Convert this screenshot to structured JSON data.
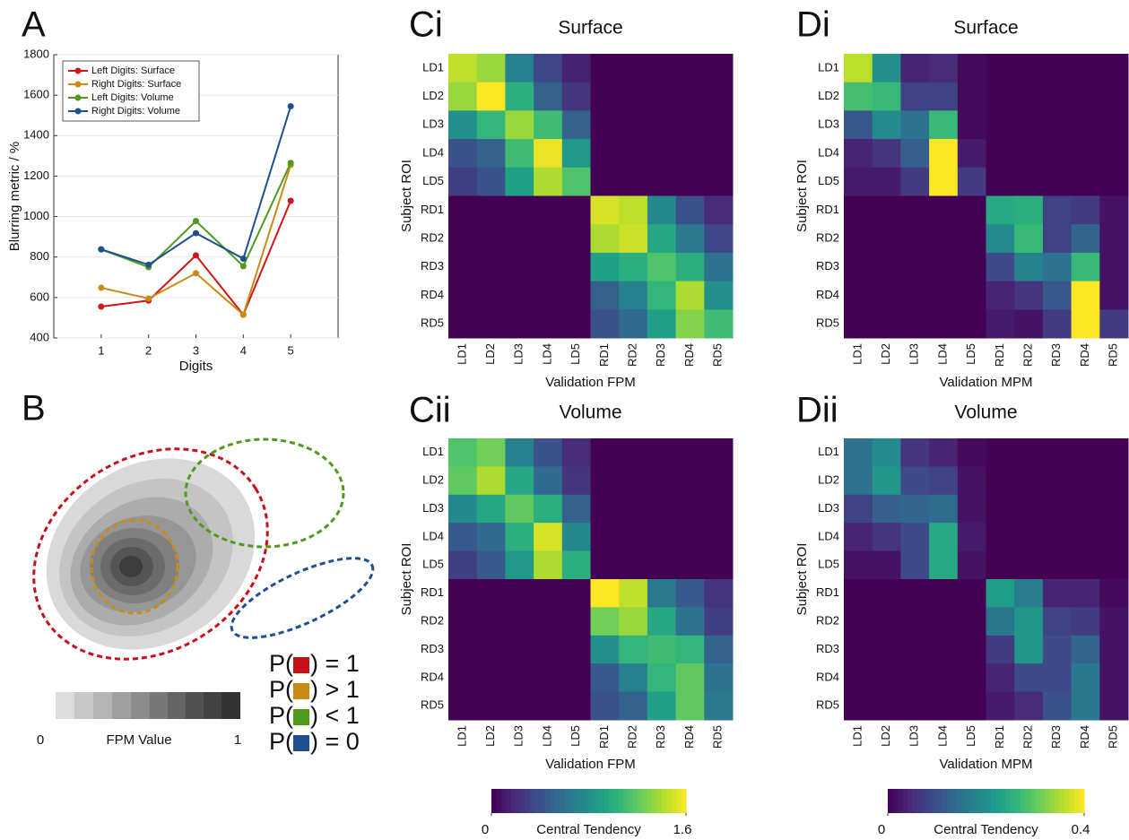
{
  "chart_data": [
    {
      "type": "line",
      "panel": "A",
      "xlabel": "Digits",
      "ylabel": "Blurring metric / %",
      "x": [
        1,
        2,
        3,
        4,
        5
      ],
      "xlim": [
        0,
        6
      ],
      "xticks": [
        1,
        2,
        3,
        4,
        5
      ],
      "ylim": [
        400,
        1800
      ],
      "yticks": [
        400,
        600,
        800,
        1000,
        1200,
        1400,
        1600,
        1800
      ],
      "grid": true,
      "legend": "upper-left",
      "series": [
        {
          "name": "Left Digits: Surface",
          "color": "#d0161b",
          "values": [
            555,
            585,
            808,
            515,
            1078
          ]
        },
        {
          "name": "Right Digits: Surface",
          "color": "#c98b14",
          "values": [
            648,
            595,
            720,
            515,
            1255
          ]
        },
        {
          "name": "Left Digits: Volume",
          "color": "#4f9a1c",
          "values": [
            838,
            750,
            978,
            755,
            1265
          ]
        },
        {
          "name": "Right Digits: Volume",
          "color": "#1d4f91",
          "values": [
            838,
            762,
            918,
            792,
            1545
          ]
        }
      ]
    },
    {
      "type": "heatmap",
      "panel": "Ci",
      "title": "Surface",
      "xlabel": "Validation FPM",
      "ylabel": "Subject ROI",
      "rows": [
        "LD1",
        "LD2",
        "LD3",
        "LD4",
        "LD5",
        "RD1",
        "RD2",
        "RD3",
        "RD4",
        "RD5"
      ],
      "columns": [
        "LD1",
        "LD2",
        "LD3",
        "LD4",
        "LD5",
        "RD1",
        "RD2",
        "RD3",
        "RD4",
        "RD5"
      ],
      "zlim": [
        0,
        1.6
      ],
      "z": [
        [
          1.45,
          1.35,
          0.7,
          0.35,
          0.15,
          0,
          0,
          0,
          0,
          0
        ],
        [
          1.35,
          1.6,
          1.0,
          0.5,
          0.25,
          0,
          0,
          0,
          0,
          0
        ],
        [
          0.8,
          1.05,
          1.35,
          1.1,
          0.5,
          0,
          0,
          0,
          0,
          0
        ],
        [
          0.4,
          0.5,
          1.1,
          1.55,
          0.85,
          0,
          0,
          0,
          0,
          0
        ],
        [
          0.3,
          0.4,
          0.9,
          1.4,
          1.15,
          0,
          0,
          0,
          0,
          0
        ],
        [
          0,
          0,
          0,
          0,
          0,
          1.5,
          1.45,
          0.75,
          0.4,
          0.2
        ],
        [
          0,
          0,
          0,
          0,
          0,
          1.4,
          1.48,
          0.95,
          0.65,
          0.35
        ],
        [
          0,
          0,
          0,
          0,
          0,
          0.9,
          1.0,
          1.15,
          1.0,
          0.6
        ],
        [
          0,
          0,
          0,
          0,
          0,
          0.5,
          0.7,
          1.05,
          1.4,
          0.8
        ],
        [
          0,
          0,
          0,
          0,
          0,
          0.4,
          0.55,
          0.9,
          1.3,
          1.1
        ]
      ]
    },
    {
      "type": "heatmap",
      "panel": "Cii",
      "title": "Volume",
      "xlabel": "Validation FPM",
      "ylabel": "Subject ROI",
      "rows": [
        "LD1",
        "LD2",
        "LD3",
        "LD4",
        "LD5",
        "RD1",
        "RD2",
        "RD3",
        "RD4",
        "RD5"
      ],
      "columns": [
        "LD1",
        "LD2",
        "LD3",
        "LD4",
        "LD5",
        "RD1",
        "RD2",
        "RD3",
        "RD4",
        "RD5"
      ],
      "zlim": [
        0,
        1.6
      ],
      "colorbar_label": "Central Tendency",
      "colorbar_ticks": [
        0,
        1.6
      ],
      "z": [
        [
          1.15,
          1.25,
          0.7,
          0.4,
          0.2,
          0,
          0,
          0,
          0,
          0
        ],
        [
          1.2,
          1.4,
          0.95,
          0.55,
          0.25,
          0,
          0,
          0,
          0,
          0
        ],
        [
          0.75,
          0.95,
          1.2,
          1.0,
          0.5,
          0,
          0,
          0,
          0,
          0
        ],
        [
          0.45,
          0.55,
          1.0,
          1.5,
          0.75,
          0,
          0,
          0,
          0,
          0
        ],
        [
          0.3,
          0.45,
          0.85,
          1.4,
          1.0,
          0,
          0,
          0,
          0,
          0
        ],
        [
          0,
          0,
          0,
          0,
          0,
          1.6,
          1.45,
          0.65,
          0.45,
          0.25
        ],
        [
          0,
          0,
          0,
          0,
          0,
          1.25,
          1.35,
          0.95,
          0.6,
          0.3
        ],
        [
          0,
          0,
          0,
          0,
          0,
          0.8,
          1.05,
          1.1,
          1.05,
          0.5
        ],
        [
          0,
          0,
          0,
          0,
          0,
          0.45,
          0.7,
          1.05,
          1.2,
          0.6
        ],
        [
          0,
          0,
          0,
          0,
          0,
          0.4,
          0.5,
          0.9,
          1.2,
          0.65
        ]
      ]
    },
    {
      "type": "heatmap",
      "panel": "Di",
      "title": "Surface",
      "xlabel": "Validation MPM",
      "ylabel": "Subject ROI",
      "rows": [
        "LD1",
        "LD2",
        "LD3",
        "LD4",
        "LD5",
        "RD1",
        "RD2",
        "RD3",
        "RD4",
        "RD5"
      ],
      "columns": [
        "LD1",
        "LD2",
        "LD3",
        "LD4",
        "LD5",
        "RD1",
        "RD2",
        "RD3",
        "RD4",
        "RD5"
      ],
      "zlim": [
        0,
        0.4
      ],
      "z": [
        [
          0.36,
          0.2,
          0.04,
          0.05,
          0.01,
          0,
          0,
          0,
          0,
          0
        ],
        [
          0.28,
          0.27,
          0.08,
          0.08,
          0.01,
          0,
          0,
          0,
          0,
          0
        ],
        [
          0.11,
          0.19,
          0.15,
          0.27,
          0.01,
          0,
          0,
          0,
          0,
          0
        ],
        [
          0.04,
          0.06,
          0.12,
          0.4,
          0.03,
          0,
          0,
          0,
          0,
          0
        ],
        [
          0.03,
          0.03,
          0.07,
          0.4,
          0.07,
          0,
          0,
          0,
          0,
          0
        ],
        [
          0,
          0,
          0,
          0,
          0,
          0.24,
          0.25,
          0.08,
          0.07,
          0.02
        ],
        [
          0,
          0,
          0,
          0,
          0,
          0.19,
          0.27,
          0.08,
          0.13,
          0.02
        ],
        [
          0,
          0,
          0,
          0,
          0,
          0.09,
          0.18,
          0.15,
          0.27,
          0.02
        ],
        [
          0,
          0,
          0,
          0,
          0,
          0.04,
          0.06,
          0.11,
          0.4,
          0.02
        ],
        [
          0,
          0,
          0,
          0,
          0,
          0.03,
          0.02,
          0.07,
          0.4,
          0.07
        ]
      ]
    },
    {
      "type": "heatmap",
      "panel": "Dii",
      "title": "Volume",
      "xlabel": "Validation MPM",
      "ylabel": "Subject ROI",
      "rows": [
        "LD1",
        "LD2",
        "LD3",
        "LD4",
        "LD5",
        "RD1",
        "RD2",
        "RD3",
        "RD4",
        "RD5"
      ],
      "columns": [
        "LD1",
        "LD2",
        "LD3",
        "LD4",
        "LD5",
        "RD1",
        "RD2",
        "RD3",
        "RD4",
        "RD5"
      ],
      "zlim": [
        0,
        0.4
      ],
      "colorbar_label": "Central Tendency",
      "colorbar_ticks": [
        0,
        0.4
      ],
      "z": [
        [
          0.15,
          0.19,
          0.06,
          0.04,
          0.01,
          0,
          0,
          0,
          0,
          0
        ],
        [
          0.15,
          0.21,
          0.09,
          0.08,
          0.02,
          0,
          0,
          0,
          0,
          0
        ],
        [
          0.08,
          0.12,
          0.13,
          0.14,
          0.02,
          0,
          0,
          0,
          0,
          0
        ],
        [
          0.04,
          0.06,
          0.09,
          0.24,
          0.03,
          0,
          0,
          0,
          0,
          0
        ],
        [
          0.02,
          0.02,
          0.09,
          0.24,
          0.02,
          0,
          0,
          0,
          0,
          0
        ],
        [
          0,
          0,
          0,
          0,
          0,
          0.22,
          0.17,
          0.04,
          0.04,
          0.01
        ],
        [
          0,
          0,
          0,
          0,
          0,
          0.16,
          0.21,
          0.08,
          0.07,
          0.02
        ],
        [
          0,
          0,
          0,
          0,
          0,
          0.07,
          0.21,
          0.09,
          0.13,
          0.02
        ],
        [
          0,
          0,
          0,
          0,
          0,
          0.04,
          0.09,
          0.09,
          0.16,
          0.02
        ],
        [
          0,
          0,
          0,
          0,
          0,
          0.03,
          0.05,
          0.1,
          0.16,
          0.02
        ]
      ]
    }
  ],
  "panel_b": {
    "label": "B",
    "fpm_scale": {
      "label": "FPM Value",
      "range": [
        0,
        1
      ]
    },
    "legend": [
      {
        "prefix": "P(",
        "suffix": ") = 1",
        "color": "#c8101a"
      },
      {
        "prefix": "P(",
        "suffix": ") > 1",
        "color": "#c98b14"
      },
      {
        "prefix": "P(",
        "suffix": ") < 1",
        "color": "#4f9a1c"
      },
      {
        "prefix": "P(",
        "suffix": ") = 0",
        "color": "#1d4f91"
      }
    ]
  }
}
